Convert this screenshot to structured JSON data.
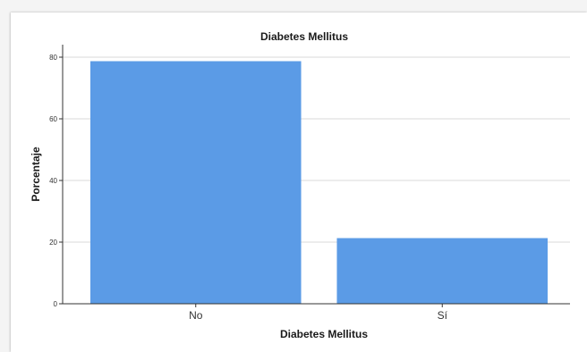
{
  "chart_data": {
    "type": "bar",
    "title": "Diabetes Mellitus",
    "xlabel": "Diabetes Mellitus",
    "ylabel": "Porcentaje",
    "categories": [
      "No",
      "Sí"
    ],
    "values": [
      78.7,
      21.3
    ],
    "ylim": [
      0,
      80
    ],
    "yticks": [
      0,
      20,
      40,
      60,
      80
    ],
    "grid": true,
    "bar_color": "#5b9be6"
  }
}
